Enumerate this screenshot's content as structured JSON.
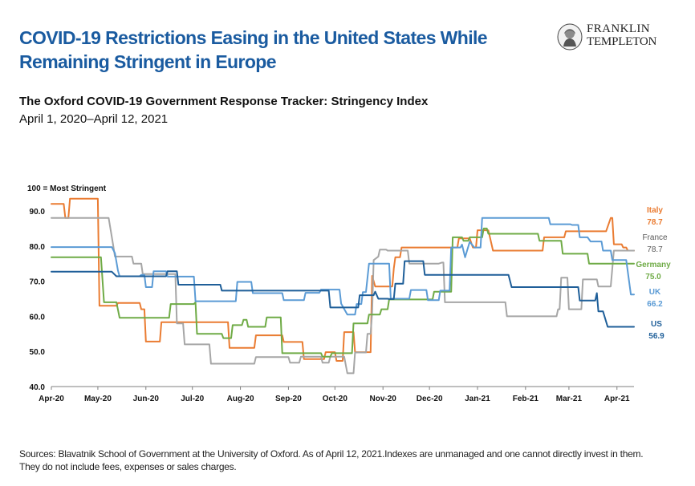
{
  "header": {
    "headline": "COVID-19 Restrictions Easing in the United States While Remaining Stringent in Europe",
    "logo": {
      "icon": "benjamin-franklin-portrait-icon",
      "line1": "FRANKLIN",
      "line2": "TEMPLETON"
    }
  },
  "chart_data": {
    "type": "line",
    "title": "The Oxford COVID-19 Government Response Tracker: Stringency Index",
    "subtitle": "April 1, 2020–April 12, 2021",
    "ylabel": "100 = Most Stringent",
    "ylim": [
      40,
      90
    ],
    "yticks": [
      "40.0",
      "50.0",
      "60.0",
      "70.0",
      "80.0",
      "90.0"
    ],
    "xlim": [
      0,
      376
    ],
    "xticks": [
      {
        "label": "Apr-20",
        "day": 0
      },
      {
        "label": "May-20",
        "day": 30
      },
      {
        "label": "Jun-20",
        "day": 61
      },
      {
        "label": "Jul-20",
        "day": 91
      },
      {
        "label": "Aug-20",
        "day": 122
      },
      {
        "label": "Sep-20",
        "day": 153
      },
      {
        "label": "Oct-20",
        "day": 183
      },
      {
        "label": "Nov-20",
        "day": 214
      },
      {
        "label": "Dec-20",
        "day": 244
      },
      {
        "label": "Jan-21",
        "day": 275
      },
      {
        "label": "Feb-21",
        "day": 306
      },
      {
        "label": "Mar-21",
        "day": 334
      },
      {
        "label": "Apr-21",
        "day": 365
      }
    ],
    "grid": false,
    "legend": "right-end-labels",
    "series": [
      {
        "name": "Italy",
        "end_label": "78.7",
        "color": "#ea7c32",
        "points": [
          [
            0,
            92
          ],
          [
            8,
            92
          ],
          [
            9,
            88
          ],
          [
            11,
            88
          ],
          [
            12,
            93.5
          ],
          [
            30,
            93.5
          ],
          [
            31,
            63
          ],
          [
            42,
            63
          ],
          [
            43,
            63.8
          ],
          [
            57,
            63.8
          ],
          [
            58,
            62
          ],
          [
            60,
            62
          ],
          [
            61,
            52.8
          ],
          [
            70,
            52.8
          ],
          [
            71,
            58.3
          ],
          [
            114,
            58.3
          ],
          [
            115,
            51
          ],
          [
            131,
            51
          ],
          [
            132,
            54.6
          ],
          [
            149,
            54.6
          ],
          [
            150,
            52.7
          ],
          [
            162,
            52.7
          ],
          [
            163,
            47.8
          ],
          [
            176,
            47.8
          ],
          [
            177,
            49.8
          ],
          [
            183,
            49.8
          ],
          [
            184,
            47.3
          ],
          [
            188,
            47.3
          ],
          [
            189,
            55.5
          ],
          [
            195,
            55.5
          ],
          [
            196,
            49.8
          ],
          [
            206,
            49.8
          ],
          [
            207,
            71.5
          ],
          [
            209,
            68.5
          ],
          [
            220,
            68.5
          ],
          [
            221,
            73.6
          ],
          [
            222,
            76.8
          ],
          [
            225,
            76.8
          ],
          [
            226,
            79.6
          ],
          [
            262,
            79.6
          ],
          [
            263,
            82.2
          ],
          [
            270,
            82.2
          ],
          [
            272,
            79.6
          ],
          [
            274,
            79.6
          ],
          [
            275,
            84.5
          ],
          [
            282,
            84.5
          ],
          [
            285,
            78.7
          ],
          [
            317,
            78.7
          ],
          [
            318,
            82.5
          ],
          [
            331,
            82.5
          ],
          [
            332,
            84.2
          ],
          [
            358,
            84.2
          ],
          [
            361,
            88
          ],
          [
            362,
            88
          ],
          [
            363,
            80.5
          ],
          [
            368,
            80.5
          ],
          [
            369,
            79.6
          ],
          [
            371,
            79.6
          ],
          [
            372,
            78.7
          ],
          [
            376,
            78.7
          ]
        ]
      },
      {
        "name": "France",
        "end_label": "78.7",
        "color": "#a6a6a6",
        "points": [
          [
            0,
            88
          ],
          [
            37,
            88
          ],
          [
            40,
            80
          ],
          [
            41,
            77
          ],
          [
            52,
            77
          ],
          [
            53,
            75
          ],
          [
            58,
            75
          ],
          [
            59,
            72
          ],
          [
            80,
            72
          ],
          [
            81,
            58
          ],
          [
            85,
            58
          ],
          [
            86,
            52
          ],
          [
            102,
            52
          ],
          [
            103,
            46.5
          ],
          [
            131,
            46.5
          ],
          [
            132,
            48.4
          ],
          [
            153,
            48.4
          ],
          [
            154,
            46.8
          ],
          [
            160,
            46.8
          ],
          [
            161,
            48.5
          ],
          [
            174,
            48.5
          ],
          [
            175,
            46.8
          ],
          [
            179,
            46.8
          ],
          [
            180,
            48.5
          ],
          [
            189,
            48.5
          ],
          [
            191,
            43.8
          ],
          [
            195,
            43.8
          ],
          [
            196,
            49.7
          ],
          [
            203,
            49.7
          ],
          [
            204,
            55
          ],
          [
            206,
            55
          ],
          [
            207,
            61
          ],
          [
            208,
            76
          ],
          [
            211,
            77
          ],
          [
            212,
            79
          ],
          [
            216,
            79
          ],
          [
            217,
            78.7
          ],
          [
            230,
            78.7
          ],
          [
            231,
            75
          ],
          [
            250,
            75
          ],
          [
            252,
            75.3
          ],
          [
            253,
            75.3
          ],
          [
            254,
            64
          ],
          [
            293,
            64
          ],
          [
            294,
            60
          ],
          [
            326,
            60
          ],
          [
            327,
            62
          ],
          [
            328,
            62
          ],
          [
            329,
            71
          ],
          [
            333,
            71
          ],
          [
            334,
            62
          ],
          [
            342,
            62
          ],
          [
            343,
            70.5
          ],
          [
            352,
            70.5
          ],
          [
            353,
            68.5
          ],
          [
            361,
            68.5
          ],
          [
            363,
            78.7
          ],
          [
            376,
            78.7
          ]
        ]
      },
      {
        "name": "Germany",
        "end_label": "75.0",
        "color": "#6fab46",
        "points": [
          [
            0,
            76.8
          ],
          [
            32,
            76.8
          ],
          [
            34,
            64
          ],
          [
            42,
            64
          ],
          [
            44,
            59.6
          ],
          [
            76,
            59.6
          ],
          [
            77,
            63.5
          ],
          [
            92,
            63.5
          ],
          [
            93,
            64
          ],
          [
            94,
            55
          ],
          [
            110,
            55
          ],
          [
            111,
            53.8
          ],
          [
            116,
            53.8
          ],
          [
            117,
            57.5
          ],
          [
            123,
            57.5
          ],
          [
            124,
            59
          ],
          [
            126,
            59
          ],
          [
            127,
            57
          ],
          [
            138,
            57
          ],
          [
            139,
            59.7
          ],
          [
            148,
            59.7
          ],
          [
            149,
            49.5
          ],
          [
            174,
            49.5
          ],
          [
            175,
            48.5
          ],
          [
            180,
            48.5
          ],
          [
            181,
            49.5
          ],
          [
            194,
            49.5
          ],
          [
            195,
            58
          ],
          [
            204,
            58
          ],
          [
            205,
            60.5
          ],
          [
            212,
            60.5
          ],
          [
            213,
            62
          ],
          [
            217,
            62
          ],
          [
            218,
            64.8
          ],
          [
            246,
            64.8
          ],
          [
            247,
            67
          ],
          [
            258,
            67
          ],
          [
            259,
            82.5
          ],
          [
            265,
            82.5
          ],
          [
            266,
            81.5
          ],
          [
            269,
            81.5
          ],
          [
            270,
            82.5
          ],
          [
            278,
            82.5
          ],
          [
            279,
            85
          ],
          [
            281,
            85
          ],
          [
            282,
            83.5
          ],
          [
            314,
            83.5
          ],
          [
            315,
            81.5
          ],
          [
            329,
            81.5
          ],
          [
            330,
            77.8
          ],
          [
            346,
            77.8
          ],
          [
            347,
            75
          ],
          [
            376,
            75
          ]
        ]
      },
      {
        "name": "UK",
        "end_label": "66.2",
        "color": "#5b9bd5",
        "points": [
          [
            0,
            79.7
          ],
          [
            39,
            79.7
          ],
          [
            41,
            78
          ],
          [
            43,
            73
          ],
          [
            44,
            71.4
          ],
          [
            57,
            71.4
          ],
          [
            58,
            71.8
          ],
          [
            60,
            71.8
          ],
          [
            61,
            68.3
          ],
          [
            65,
            68.3
          ],
          [
            66,
            72.8
          ],
          [
            74,
            72.8
          ],
          [
            75,
            71.3
          ],
          [
            92,
            71.3
          ],
          [
            93,
            64.3
          ],
          [
            119,
            64.3
          ],
          [
            120,
            69.8
          ],
          [
            129,
            69.8
          ],
          [
            130,
            66.6
          ],
          [
            149,
            66.6
          ],
          [
            150,
            64.6
          ],
          [
            163,
            64.6
          ],
          [
            164,
            66.7
          ],
          [
            173,
            66.7
          ],
          [
            174,
            67.6
          ],
          [
            186,
            67.6
          ],
          [
            187,
            63.6
          ],
          [
            191,
            60.5
          ],
          [
            196,
            60.5
          ],
          [
            197,
            63.5
          ],
          [
            200,
            63.5
          ],
          [
            201,
            66.9
          ],
          [
            203,
            66.9
          ],
          [
            205,
            75
          ],
          [
            218,
            75
          ],
          [
            219,
            65
          ],
          [
            231,
            65
          ],
          [
            232,
            67.5
          ],
          [
            242,
            67.5
          ],
          [
            243,
            64.6
          ],
          [
            250,
            64.6
          ],
          [
            251,
            67.3
          ],
          [
            257,
            67.3
          ],
          [
            258,
            79.6
          ],
          [
            264,
            79.6
          ],
          [
            265,
            80.4
          ],
          [
            267,
            76.8
          ],
          [
            270,
            81.2
          ],
          [
            273,
            79.6
          ],
          [
            277,
            79.6
          ],
          [
            278,
            88
          ],
          [
            321,
            88
          ],
          [
            322,
            86.2
          ],
          [
            335,
            86.2
          ],
          [
            336,
            86
          ],
          [
            340,
            86
          ],
          [
            341,
            82.5
          ],
          [
            346,
            82.5
          ],
          [
            348,
            81.3
          ],
          [
            355,
            81.3
          ],
          [
            356,
            78.7
          ],
          [
            361,
            78.7
          ],
          [
            362,
            76
          ],
          [
            371,
            76
          ],
          [
            374,
            66.2
          ],
          [
            376,
            66.2
          ]
        ]
      },
      {
        "name": "US",
        "end_label": "56.9",
        "color": "#1f5f99",
        "points": [
          [
            0,
            72.7
          ],
          [
            39,
            72.7
          ],
          [
            42,
            71.4
          ],
          [
            74,
            71.4
          ],
          [
            75,
            72.8
          ],
          [
            81,
            72.8
          ],
          [
            82,
            69
          ],
          [
            109,
            69
          ],
          [
            110,
            67.3
          ],
          [
            179,
            67.3
          ],
          [
            180,
            62.5
          ],
          [
            198,
            62.5
          ],
          [
            199,
            66
          ],
          [
            208,
            66
          ],
          [
            209,
            67
          ],
          [
            211,
            65
          ],
          [
            217,
            65
          ],
          [
            218,
            64.9
          ],
          [
            221,
            64.9
          ],
          [
            222,
            69.3
          ],
          [
            227,
            69.3
          ],
          [
            228,
            75.7
          ],
          [
            240,
            75.7
          ],
          [
            241,
            71.8
          ],
          [
            295,
            71.8
          ],
          [
            297,
            68.3
          ],
          [
            340,
            68.3
          ],
          [
            341,
            64.5
          ],
          [
            351,
            64.5
          ],
          [
            352,
            66.6
          ],
          [
            353,
            61.4
          ],
          [
            356,
            61.4
          ],
          [
            359,
            57
          ],
          [
            376,
            57
          ]
        ]
      }
    ]
  },
  "footer": {
    "sources": "Sources: Blavatnik School of Government at the University of Oxford. As of April 12, 2021.Indexes are unmanaged and one cannot directly invest in them. They do not include fees, expenses or sales charges."
  }
}
